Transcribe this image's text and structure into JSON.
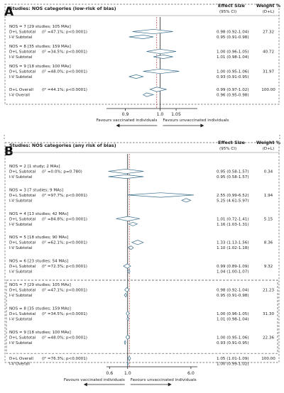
{
  "panels": [
    {
      "letter": "A",
      "title": "Studies: NOS categories (low-risk of bias)",
      "col_effect": "Effect Size",
      "col_effect_sub": "(95% CI)",
      "col_weight": "Weight %",
      "col_weight_sub": "(D+L)",
      "favours_left": "Favours vaccinated individuals",
      "favours_right": "Favours unvaccinated individuals",
      "groups": [
        {
          "label": "NOS = 7 [29 studies; 105 MAs]",
          "dl_label": "D+L Subtotal",
          "dl_i2": "(I² =47.1%; p<0.0001)",
          "dl_ci": "0.98 (0.92-1.04)",
          "dl_weight": "27.32",
          "iv_label": "I-V  Subtotal",
          "iv_ci": "0.95 (0.91-0.98)"
        },
        {
          "label": "NOS = 8 [35 studies; 159 MAs]",
          "dl_label": "D+L Subtotal",
          "dl_i2": "(I² =34.5%; p<0.0001)",
          "dl_ci": "1.00 (0.96-1.05)",
          "dl_weight": "40.72",
          "iv_label": "I-V  Subtotal",
          "iv_ci": "1.01 (0.98-1.04)"
        },
        {
          "label": "NOS = 9 [18 studies; 100 MAs]",
          "dl_label": "D+L Subtotal",
          "dl_i2": "(I² =48.0%; p<0.0001)",
          "dl_ci": "1.00 (0.95-1.06)",
          "dl_weight": "31.97",
          "iv_label": "I-V  Subtotal",
          "iv_ci": "0.93 (0.91-0.95)"
        }
      ],
      "overall": {
        "dl_label": "D+L Overall",
        "dl_i2": "(I² =44.1%; p<0.0001)",
        "dl_ci": "0.99 (0.97-1.02)",
        "dl_weight": "100.00",
        "iv_label": "I-V  Overall",
        "iv_ci": "0.96 (0.95-0.98)"
      }
    },
    {
      "letter": "B",
      "title": "Studies: NOS categories (any risk of bias)",
      "col_effect": "Effect Size",
      "col_effect_sub": "(95% CI)",
      "col_weight": "Weight %",
      "col_weight_sub": "(D+L)",
      "favours_left": "Favours vaccinated individuals",
      "favours_right": "Favours unvaccinated individuals",
      "groups": [
        {
          "label": "NOS = 2 [1 study; 2 MAs]",
          "dl_label": "D+L Subtotal",
          "dl_i2": "(I² =0.0%; p=0.780)",
          "dl_ci": "0.95 (0.58-1.57)",
          "dl_weight": "0.34",
          "iv_label": "I-V  Subtotal",
          "iv_ci": "0.95 (0.58-1.57)"
        },
        {
          "label": "NOS = 3 [7 studies; 9 MAs]",
          "dl_label": "D+L Subtotal",
          "dl_i2": "(I² =97.7%; p<0.0001)",
          "dl_ci": "2.55 (0.99-6.52)",
          "dl_weight": "1.94",
          "iv_label": "I-V  Subtotal",
          "iv_ci": "5.25 (4.61-5.97)"
        },
        {
          "label": "NOS = 4 [13 studies; 42 MAs]",
          "dl_label": "D+L Subtotal",
          "dl_i2": "(I² =84.8%; p<0.0001)",
          "dl_ci": "1.01 (0.72-1.41)",
          "dl_weight": "5.15",
          "iv_label": "I-V  Subtotal",
          "iv_ci": "1.16 (1.03-1.31)"
        },
        {
          "label": "NOS = 5 [18 studies; 90 MAs]",
          "dl_label": "D+L Subtotal",
          "dl_i2": "(I² =62.1%; p<0.0001)",
          "dl_ci": "1.33 (1.13-1.56)",
          "dl_weight": "8.36",
          "iv_label": "I-V  Subtotal",
          "iv_ci": "1.10 (1.02-1.18)"
        },
        {
          "label": "NOS = 6 [23 studies; 54 MAs]",
          "dl_label": "D+L Subtotal",
          "dl_i2": "(I² =72.3%; p<0.0001)",
          "dl_ci": "0.99 (0.89-1.09)",
          "dl_weight": "9.32",
          "iv_label": "I-V  Subtotal",
          "iv_ci": "1.04 (1.00-1.07)"
        },
        {
          "label": "NOS = 7 [29 studies; 105 MAs]",
          "dl_label": "D+L Subtotal",
          "dl_i2": "(I² =47.1%; p<0.0001)",
          "dl_ci": "0.98 (0.92-1.04)",
          "dl_weight": "21.23",
          "iv_label": "I-V  Subtotal",
          "iv_ci": "0.95 (0.91-0.98)"
        },
        {
          "label": "NOS = 8 [35 studies; 159 MAs]",
          "dl_label": "D+L Subtotal",
          "dl_i2": "(I² =34.5%; p<0.0001)",
          "dl_ci": "1.00 (0.96-1.05)",
          "dl_weight": "31.30",
          "iv_label": "I-V  Subtotal",
          "iv_ci": "1.01 (0.98-1.04)"
        },
        {
          "label": "NOS = 9 [18 studies; 100 MAs]",
          "dl_label": "D+L Subtotal",
          "dl_i2": "(I² =48.0%; p<0.0001)",
          "dl_ci": "1.00 (0.95-1.06)",
          "dl_weight": "22.36",
          "iv_label": "I-V  Subtotal",
          "iv_ci": "0.93 (0.91-0.95)"
        }
      ],
      "overall": {
        "dl_label": "D+L Overall",
        "dl_i2": "(I² =76.3%; p<0.0001)",
        "dl_ci": "1.05 (1.01-1.09)",
        "dl_weight": "100.00",
        "iv_label": "I-V  Overall",
        "iv_ci": "1.00 (0.99-1.02)"
      }
    }
  ],
  "chart_data": [
    {
      "type": "forest",
      "title": "Studies: NOS categories (low-risk of bias)",
      "scale": "log",
      "xlim": [
        0.85,
        1.12
      ],
      "x_ticks": [
        0.9,
        1.0,
        1.05
      ],
      "x_tick_labels": [
        "0.9",
        "1.0",
        "1.05"
      ],
      "reference_line": 1.0,
      "overall_dashed_line": 0.99,
      "series": [
        {
          "name": "D+L Subtotal",
          "estimates": [
            0.98,
            1.0,
            1.0
          ],
          "lower": [
            0.92,
            0.96,
            0.95
          ],
          "upper": [
            1.04,
            1.05,
            1.06
          ]
        },
        {
          "name": "I-V Subtotal",
          "estimates": [
            0.95,
            1.01,
            0.93
          ],
          "lower": [
            0.91,
            0.98,
            0.91
          ],
          "upper": [
            0.98,
            1.04,
            0.95
          ]
        }
      ],
      "overall": [
        {
          "name": "D+L Overall",
          "estimate": 0.99,
          "lower": 0.97,
          "upper": 1.02
        },
        {
          "name": "I-V Overall",
          "estimate": 0.96,
          "lower": 0.95,
          "upper": 0.98
        }
      ]
    },
    {
      "type": "forest",
      "title": "Studies: NOS categories (any risk of bias)",
      "scale": "log",
      "xlim": [
        0.55,
        7.2
      ],
      "x_ticks": [
        0.6,
        1.0,
        6.0
      ],
      "x_tick_labels": [
        "0.6",
        "1.0",
        "6.0"
      ],
      "reference_line": 1.0,
      "overall_dashed_line": 1.05,
      "series": [
        {
          "name": "D+L Subtotal",
          "estimates": [
            0.95,
            2.55,
            1.01,
            1.33,
            0.99,
            0.98,
            1.0,
            1.0
          ],
          "lower": [
            0.58,
            0.99,
            0.72,
            1.13,
            0.89,
            0.92,
            0.96,
            0.95
          ],
          "upper": [
            1.57,
            6.52,
            1.41,
            1.56,
            1.09,
            1.04,
            1.05,
            1.06
          ]
        },
        {
          "name": "I-V Subtotal",
          "estimates": [
            0.95,
            5.25,
            1.16,
            1.1,
            1.04,
            0.95,
            1.01,
            0.93
          ],
          "lower": [
            0.58,
            4.61,
            1.03,
            1.02,
            1.0,
            0.91,
            0.98,
            0.91
          ],
          "upper": [
            1.57,
            5.97,
            1.31,
            1.18,
            1.07,
            0.98,
            1.04,
            0.95
          ]
        }
      ],
      "overall": [
        {
          "name": "D+L Overall",
          "estimate": 1.05,
          "lower": 1.01,
          "upper": 1.09
        },
        {
          "name": "I-V Overall",
          "estimate": 1.0,
          "lower": 0.99,
          "upper": 1.02
        }
      ]
    }
  ]
}
